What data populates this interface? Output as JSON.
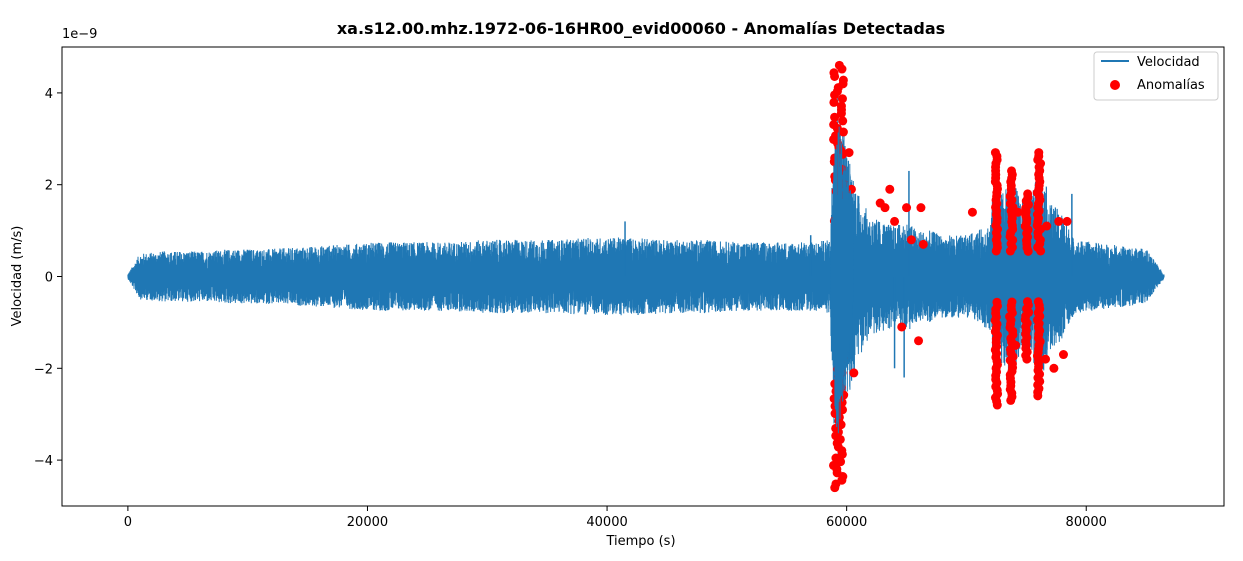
{
  "chart_data": {
    "type": "line",
    "title": "xa.s12.00.mhz.1972-06-16HR00_evid00060 - Anomalías Detectadas",
    "xlabel": "Tiempo (s)",
    "ylabel": "Velocidad (m/s)",
    "y_offset_text": "1e−9",
    "xlim": [
      -5500,
      91500
    ],
    "ylim": [
      -5.0,
      5.0
    ],
    "x_ticks": [
      0,
      20000,
      40000,
      60000,
      80000
    ],
    "x_tick_labels": [
      "0",
      "20000",
      "40000",
      "60000",
      "80000"
    ],
    "y_ticks": [
      -4,
      -2,
      0,
      2,
      4
    ],
    "y_tick_labels": [
      "−4",
      "−2",
      "0",
      "2",
      "4"
    ],
    "grid": false,
    "legend_position": "top-right",
    "series": [
      {
        "name": "Velocidad",
        "kind": "line",
        "color": "#1f77b4",
        "envelope": [
          [
            0,
            0.05
          ],
          [
            1000,
            0.5
          ],
          [
            3000,
            0.55
          ],
          [
            6000,
            0.55
          ],
          [
            9000,
            0.6
          ],
          [
            12000,
            0.6
          ],
          [
            15000,
            0.65
          ],
          [
            18000,
            0.7
          ],
          [
            21000,
            0.75
          ],
          [
            24000,
            0.75
          ],
          [
            27000,
            0.75
          ],
          [
            30000,
            0.8
          ],
          [
            33000,
            0.8
          ],
          [
            36000,
            0.8
          ],
          [
            39000,
            0.85
          ],
          [
            42000,
            0.85
          ],
          [
            45000,
            0.8
          ],
          [
            48000,
            0.8
          ],
          [
            51000,
            0.75
          ],
          [
            54000,
            0.75
          ],
          [
            57000,
            0.75
          ],
          [
            58600,
            0.8
          ],
          [
            59000,
            3.8
          ],
          [
            59300,
            4.4
          ],
          [
            59600,
            3.6
          ],
          [
            60000,
            2.8
          ],
          [
            60500,
            2.3
          ],
          [
            61000,
            1.8
          ],
          [
            62000,
            1.3
          ],
          [
            63000,
            1.2
          ],
          [
            64000,
            1.1
          ],
          [
            65000,
            1.2
          ],
          [
            66000,
            1.0
          ],
          [
            67000,
            1.0
          ],
          [
            68000,
            0.9
          ],
          [
            69000,
            0.9
          ],
          [
            70000,
            0.9
          ],
          [
            71000,
            1.0
          ],
          [
            72000,
            1.2
          ],
          [
            72500,
            2.6
          ],
          [
            73000,
            1.8
          ],
          [
            73700,
            2.4
          ],
          [
            74500,
            1.6
          ],
          [
            75500,
            1.8
          ],
          [
            76100,
            2.6
          ],
          [
            77000,
            1.6
          ],
          [
            78000,
            1.4
          ],
          [
            79000,
            0.8
          ],
          [
            82000,
            0.7
          ],
          [
            85000,
            0.6
          ],
          [
            86500,
            0.05
          ]
        ],
        "spikes": [
          {
            "x": 41500,
            "y": 1.2
          },
          {
            "x": 57000,
            "y": 0.9
          },
          {
            "x": 64800,
            "y": -2.2
          },
          {
            "x": 65200,
            "y": 2.3
          },
          {
            "x": 64000,
            "y": -2.0
          },
          {
            "x": 78800,
            "y": 1.8
          }
        ]
      },
      {
        "name": "Anomalías",
        "kind": "scatter",
        "color": "#ff0000",
        "clusters": [
          {
            "x_from": 58900,
            "x_to": 59800,
            "y_from": 4.6,
            "y_to": 0.0
          },
          {
            "x_from": 58900,
            "x_to": 59800,
            "y_from": -4.6,
            "y_to": 0.0
          },
          {
            "x_from": 72400,
            "x_to": 72600,
            "y_from": 2.7,
            "y_to": 0.0
          },
          {
            "x_from": 72400,
            "x_to": 72600,
            "y_from": -2.8,
            "y_to": 0.0
          },
          {
            "x_from": 73600,
            "x_to": 73900,
            "y_from": 2.3,
            "y_to": 0.0
          },
          {
            "x_from": 73600,
            "x_to": 73900,
            "y_from": -2.7,
            "y_to": 0.0
          },
          {
            "x_from": 75900,
            "x_to": 76200,
            "y_from": 2.7,
            "y_to": 0.0
          },
          {
            "x_from": 75900,
            "x_to": 76200,
            "y_from": -2.6,
            "y_to": 0.0
          },
          {
            "x_from": 74900,
            "x_to": 75200,
            "y_from": 1.8,
            "y_to": 0.0
          },
          {
            "x_from": 74900,
            "x_to": 75200,
            "y_from": -1.8,
            "y_to": 0.0
          }
        ],
        "points": [
          {
            "x": 60200,
            "y": 2.7
          },
          {
            "x": 60400,
            "y": 1.9
          },
          {
            "x": 60600,
            "y": -2.1
          },
          {
            "x": 62800,
            "y": 1.6
          },
          {
            "x": 63200,
            "y": 1.5
          },
          {
            "x": 64000,
            "y": 1.2
          },
          {
            "x": 63600,
            "y": 1.9
          },
          {
            "x": 65000,
            "y": 1.5
          },
          {
            "x": 65400,
            "y": 0.8
          },
          {
            "x": 66200,
            "y": 1.5
          },
          {
            "x": 64600,
            "y": -1.1
          },
          {
            "x": 66000,
            "y": -1.4
          },
          {
            "x": 66400,
            "y": 0.7
          },
          {
            "x": 70500,
            "y": 1.4
          },
          {
            "x": 77700,
            "y": 1.2
          },
          {
            "x": 77300,
            "y": -2.0
          },
          {
            "x": 78100,
            "y": -1.7
          },
          {
            "x": 78400,
            "y": 1.2
          },
          {
            "x": 74300,
            "y": 1.4
          },
          {
            "x": 74100,
            "y": -1.5
          },
          {
            "x": 76700,
            "y": 1.1
          },
          {
            "x": 76600,
            "y": -1.8
          }
        ]
      }
    ]
  }
}
